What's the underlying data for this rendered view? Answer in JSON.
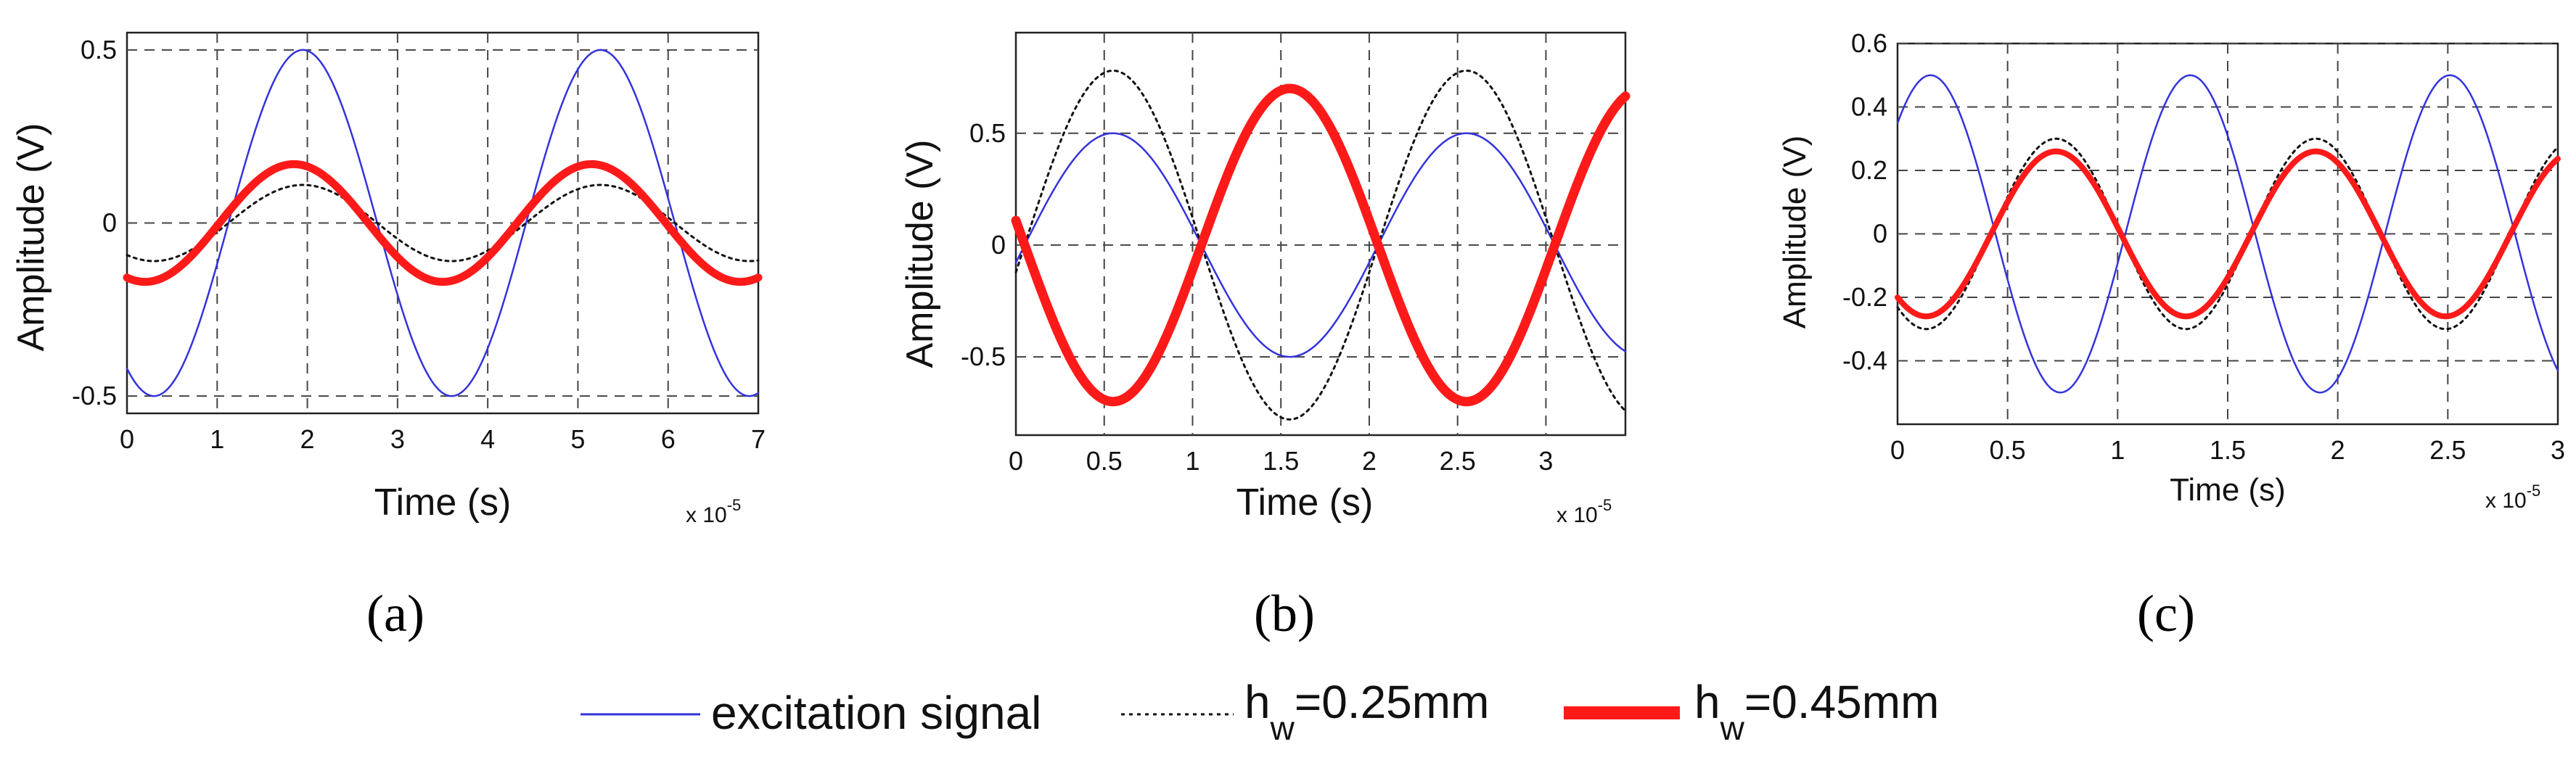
{
  "figure": {
    "legend": [
      {
        "key": "excitation",
        "label": "excitation signal",
        "color": "#3333dd",
        "style": "solid-thin"
      },
      {
        "key": "hw025",
        "label_main": "h",
        "label_sub": "w",
        "label_rest": "=0.25mm",
        "color": "#111111",
        "style": "dotted"
      },
      {
        "key": "hw045",
        "label_main": "h",
        "label_sub": "w",
        "label_rest": "=0.45mm",
        "color": "#ff1a1a",
        "style": "solid-thick"
      }
    ]
  },
  "chart_data": [
    {
      "panel": "(a)",
      "type": "line",
      "xlabel": "Time (s)",
      "ylabel": "Amplitude (V)",
      "x_multiplier": "x 10",
      "x_multiplier_exp": "-5",
      "xlim": [
        0,
        7
      ],
      "ylim": [
        -0.55,
        0.55
      ],
      "xticks": [
        0,
        1,
        2,
        3,
        4,
        5,
        6,
        7
      ],
      "xtick_labels": [
        "0",
        "1",
        "2",
        "3",
        "4",
        "5",
        "6",
        "7"
      ],
      "yticks": [
        -0.5,
        0,
        0.5
      ],
      "ytick_labels": [
        "-0.5",
        "0",
        "0.5"
      ],
      "grid": true,
      "series": [
        {
          "name": "excitation signal",
          "color": "#3333dd",
          "width": 2.5,
          "dash": "",
          "amplitude": 0.5,
          "period": 3.3,
          "phase": 1.95
        },
        {
          "name": "hw=0.25mm",
          "color": "#111111",
          "width": 3,
          "dash": "4 6",
          "amplitude": 0.11,
          "period": 3.3,
          "phase": 1.95
        },
        {
          "name": "hw=0.45mm",
          "color": "#ff1a1a",
          "width": 11,
          "dash": "",
          "amplitude": 0.17,
          "period": 3.3,
          "phase": 1.85
        }
      ]
    },
    {
      "panel": "(b)",
      "type": "line",
      "xlabel": "Time (s)",
      "ylabel": "Amplitude (V)",
      "x_multiplier": "x 10",
      "x_multiplier_exp": "-5",
      "xlim": [
        0,
        3.45
      ],
      "ylim": [
        -0.85,
        0.95
      ],
      "xticks": [
        0,
        0.5,
        1,
        1.5,
        2,
        2.5,
        3
      ],
      "xtick_labels": [
        "0",
        "0.5",
        "1",
        "1.5",
        "2",
        "2.5",
        "3"
      ],
      "yticks": [
        -0.5,
        0,
        0.5
      ],
      "ytick_labels": [
        "-0.5",
        "0",
        "0.5"
      ],
      "grid": true,
      "series": [
        {
          "name": "excitation signal",
          "color": "#3333dd",
          "width": 2.5,
          "dash": "",
          "amplitude": 0.5,
          "period": 2.0,
          "phase": 0.55
        },
        {
          "name": "hw=0.25mm",
          "color": "#111111",
          "width": 3,
          "dash": "4 6",
          "amplitude": 0.78,
          "period": 2.0,
          "phase": 0.55
        },
        {
          "name": "hw=0.45mm",
          "color": "#ff1a1a",
          "width": 13,
          "dash": "",
          "amplitude": 0.7,
          "period": 2.0,
          "phase": 1.55
        }
      ]
    },
    {
      "panel": "(c)",
      "type": "line",
      "xlabel": "Time (s)",
      "ylabel": "Amplitude (V)",
      "x_multiplier": "x 10",
      "x_multiplier_exp": "-5",
      "xlim": [
        0,
        3
      ],
      "ylim": [
        -0.6,
        0.6
      ],
      "xticks": [
        0,
        0.5,
        1,
        1.5,
        2,
        2.5,
        3
      ],
      "xtick_labels": [
        "0",
        "0.5",
        "1",
        "1.5",
        "2",
        "2.5",
        "3"
      ],
      "yticks": [
        -0.4,
        -0.2,
        0,
        0.2,
        0.4,
        0.6
      ],
      "ytick_labels": [
        "-0.4",
        "-0.2",
        "0",
        "0.2",
        "0.4",
        "0.6"
      ],
      "grid": true,
      "series": [
        {
          "name": "excitation signal",
          "color": "#3333dd",
          "width": 2.5,
          "dash": "",
          "amplitude": 0.5,
          "period": 1.18,
          "phase": 0.15
        },
        {
          "name": "hw=0.25mm",
          "color": "#111111",
          "width": 3,
          "dash": "4 6",
          "amplitude": 0.3,
          "period": 1.18,
          "phase": 0.72
        },
        {
          "name": "hw=0.45mm",
          "color": "#ff1a1a",
          "width": 8,
          "dash": "",
          "amplitude": 0.26,
          "period": 1.18,
          "phase": 0.72
        }
      ]
    }
  ]
}
